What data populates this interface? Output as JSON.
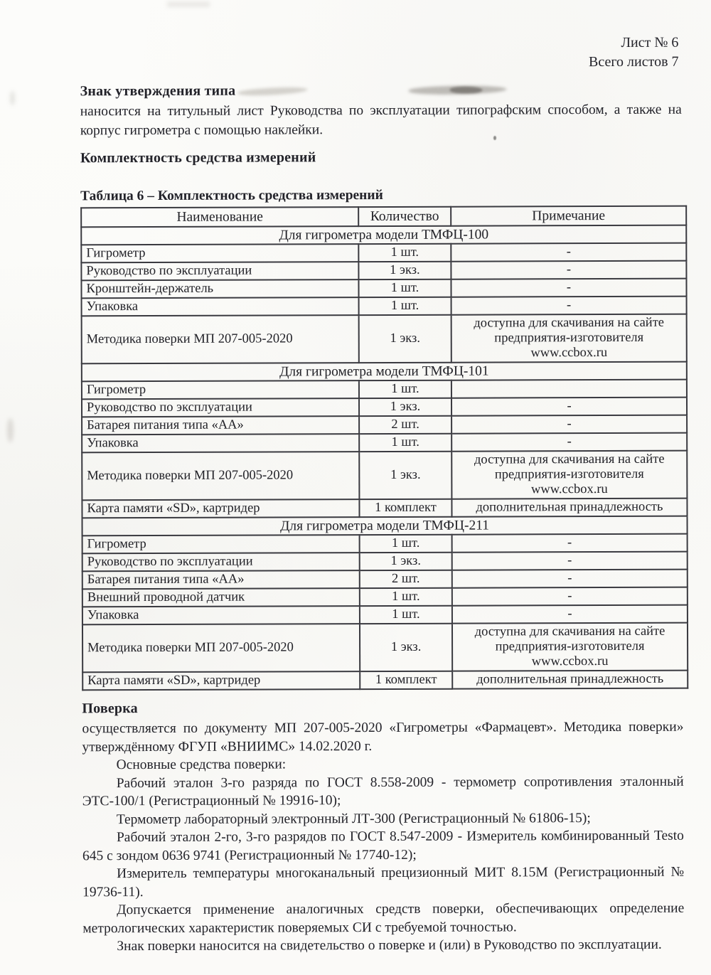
{
  "header": {
    "sheet": "Лист № 6",
    "total": "Всего листов 7"
  },
  "approval": {
    "heading": "Знак утверждения типа",
    "body": "наносится на титульный лист Руководства по эксплуатации типографским способом, а также на корпус гигрометра с помощью наклейки."
  },
  "completeness": {
    "heading": "Комплектность средства измерений",
    "table_caption": "Таблица 6 – Комплектность средства измерений"
  },
  "table": {
    "headers": [
      "Наименование",
      "Количество",
      "Примечание"
    ],
    "groups": [
      {
        "title": "Для гигрометра модели ТМФЦ-100",
        "rows": [
          [
            "Гигрометр",
            "1 шт.",
            "-"
          ],
          [
            "Руководство по эксплуатации",
            "1 экз.",
            "-"
          ],
          [
            "Кронштейн-держатель",
            "1 шт.",
            "-"
          ],
          [
            "Упаковка",
            "1 шт.",
            "-"
          ],
          [
            "Методика поверки МП 207-005-2020",
            "1 экз.",
            "доступна для скачивания на сайте предприятия-изготовителя www.ccbox.ru"
          ]
        ]
      },
      {
        "title": "Для гигрометра модели ТМФЦ-101",
        "rows": [
          [
            "Гигрометр",
            "1 шт.",
            ""
          ],
          [
            "Руководство по эксплуатации",
            "1 экз.",
            "-"
          ],
          [
            "Батарея питания типа «АА»",
            "2 шт.",
            "-"
          ],
          [
            "Упаковка",
            "1 шт.",
            "-"
          ],
          [
            "Методика поверки МП 207-005-2020",
            "1 экз.",
            "доступна для скачивания на сайте предприятия-изготовителя www.ccbox.ru"
          ],
          [
            "Карта памяти «SD», картридер",
            "1 комплект",
            "дополнительная принадлежность"
          ]
        ]
      },
      {
        "title": "Для гигрометра модели ТМФЦ-211",
        "rows": [
          [
            "Гигрометр",
            "1 шт.",
            "-"
          ],
          [
            "Руководство по эксплуатации",
            "1 экз.",
            "-"
          ],
          [
            "Батарея питания типа «АА»",
            "2 шт.",
            "-"
          ],
          [
            "Внешний проводной датчик",
            "1 шт.",
            "-"
          ],
          [
            "Упаковка",
            "1 шт.",
            "-"
          ],
          [
            "Методика поверки МП 207-005-2020",
            "1 экз.",
            "доступна для скачивания на сайте предприятия-изготовителя www.ccbox.ru"
          ],
          [
            "Карта памяти «SD», картридер",
            "1 комплект",
            "дополнительная принадлежность"
          ]
        ]
      }
    ]
  },
  "verification": {
    "heading": "Поверка",
    "paragraphs": [
      "осуществляется по документу МП 207-005-2020 «Гигрометры «Фармацевт». Методика поверки» утверждённому ФГУП «ВНИИМС» 14.02.2020 г.",
      "Основные средства поверки:",
      "Рабочий эталон 3-го разряда по ГОСТ 8.558-2009 - термометр сопротивления эталонный ЭТС-100/1 (Регистрационный № 19916-10);",
      "Термометр лабораторный электронный ЛТ-300 (Регистрационный № 61806-15);",
      "Рабочий эталон 2-го, 3-го разрядов по ГОСТ 8.547-2009 - Измеритель комбинированный Testo 645 с зондом 0636 9741 (Регистрационный № 17740-12);",
      "Измеритель температуры многоканальный прецизионный МИТ 8.15М (Регистрационный № 19736-11).",
      "Допускается применение аналогичных средств поверки, обеспечивающих определение метрологических характеристик поверяемых СИ с требуемой точностью.",
      "Знак поверки наносится на свидетельство о поверке и (или) в Руководство по эксплуатации."
    ]
  }
}
